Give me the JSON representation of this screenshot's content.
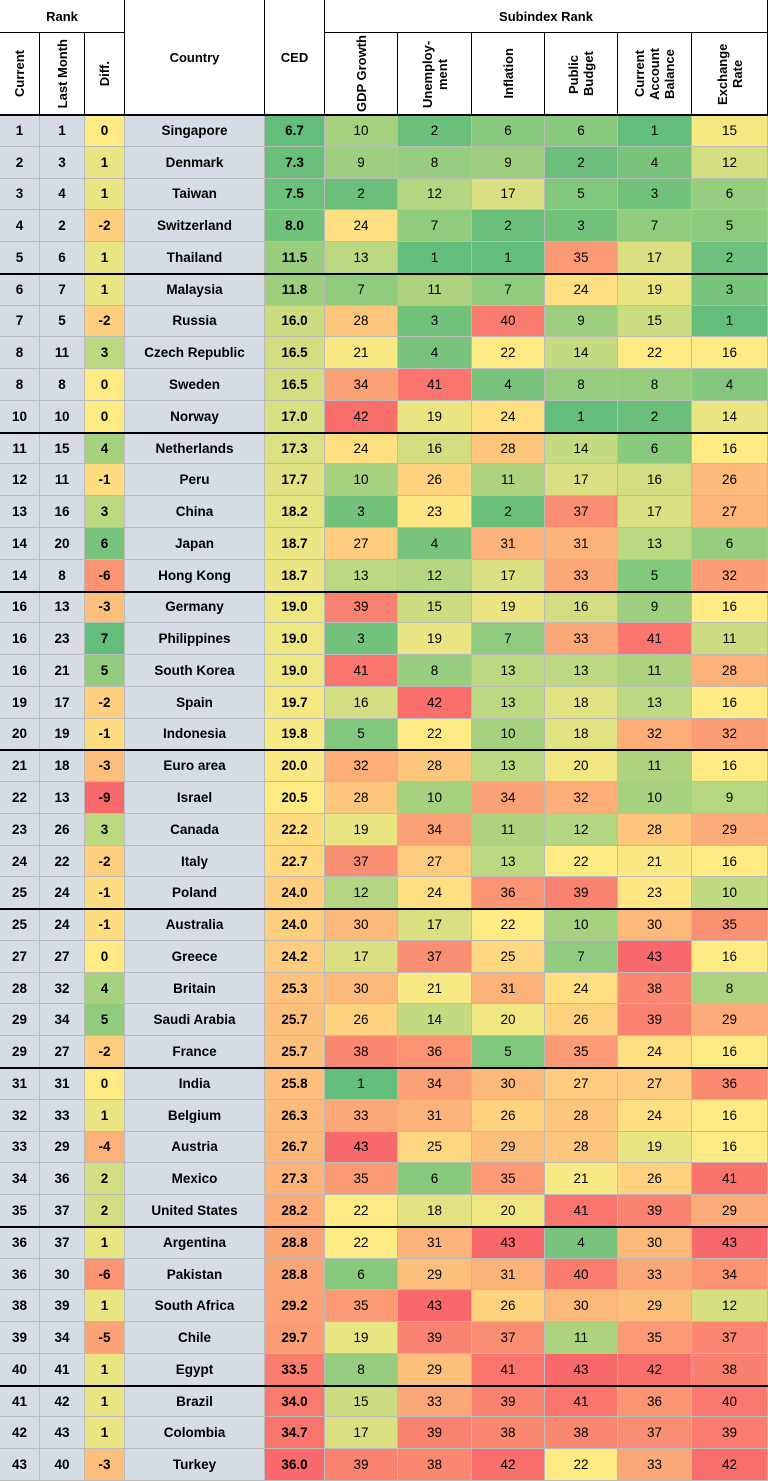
{
  "header": {
    "rank": "Rank",
    "subindex": "Subindex Rank",
    "columns": [
      "Current",
      "Last Month",
      "Diff.",
      "Country",
      "CED",
      "GDP Growth",
      "Unemploy-ment",
      "Inflation",
      "Public Budget",
      "Current Account Balance",
      "Exchange Rate"
    ]
  },
  "table": {
    "rows": [
      [
        1,
        1,
        0,
        "Singapore",
        "6.7",
        10,
        2,
        6,
        6,
        1,
        15
      ],
      [
        2,
        3,
        1,
        "Denmark",
        "7.3",
        9,
        8,
        9,
        2,
        4,
        12
      ],
      [
        3,
        4,
        1,
        "Taiwan",
        "7.5",
        2,
        12,
        17,
        5,
        3,
        6
      ],
      [
        4,
        2,
        -2,
        "Switzerland",
        "8.0",
        24,
        7,
        2,
        3,
        7,
        5
      ],
      [
        5,
        6,
        1,
        "Thailand",
        "11.5",
        13,
        1,
        1,
        35,
        17,
        2
      ],
      [
        6,
        7,
        1,
        "Malaysia",
        "11.8",
        7,
        11,
        7,
        24,
        19,
        3
      ],
      [
        7,
        5,
        -2,
        "Russia",
        "16.0",
        28,
        3,
        40,
        9,
        15,
        1
      ],
      [
        8,
        11,
        3,
        "Czech Republic",
        "16.5",
        21,
        4,
        22,
        14,
        22,
        16
      ],
      [
        8,
        8,
        0,
        "Sweden",
        "16.5",
        34,
        41,
        4,
        8,
        8,
        4
      ],
      [
        10,
        10,
        0,
        "Norway",
        "17.0",
        42,
        19,
        24,
        1,
        2,
        14
      ],
      [
        11,
        15,
        4,
        "Netherlands",
        "17.3",
        24,
        16,
        28,
        14,
        6,
        16
      ],
      [
        12,
        11,
        -1,
        "Peru",
        "17.7",
        10,
        26,
        11,
        17,
        16,
        26
      ],
      [
        13,
        16,
        3,
        "China",
        "18.2",
        3,
        23,
        2,
        37,
        17,
        27
      ],
      [
        14,
        20,
        6,
        "Japan",
        "18.7",
        27,
        4,
        31,
        31,
        13,
        6
      ],
      [
        14,
        8,
        -6,
        "Hong Kong",
        "18.7",
        13,
        12,
        17,
        33,
        5,
        32
      ],
      [
        16,
        13,
        -3,
        "Germany",
        "19.0",
        39,
        15,
        19,
        16,
        9,
        16
      ],
      [
        16,
        23,
        7,
        "Philippines",
        "19.0",
        3,
        19,
        7,
        33,
        41,
        11
      ],
      [
        16,
        21,
        5,
        "South Korea",
        "19.0",
        41,
        8,
        13,
        13,
        11,
        28
      ],
      [
        19,
        17,
        -2,
        "Spain",
        "19.7",
        16,
        42,
        13,
        18,
        13,
        16
      ],
      [
        20,
        19,
        -1,
        "Indonesia",
        "19.8",
        5,
        22,
        10,
        18,
        32,
        32
      ],
      [
        21,
        18,
        -3,
        "Euro area",
        "20.0",
        32,
        28,
        13,
        20,
        11,
        16
      ],
      [
        22,
        13,
        -9,
        "Israel",
        "20.5",
        28,
        10,
        34,
        32,
        10,
        9
      ],
      [
        23,
        26,
        3,
        "Canada",
        "22.2",
        19,
        34,
        11,
        12,
        28,
        29
      ],
      [
        24,
        22,
        -2,
        "Italy",
        "22.7",
        37,
        27,
        13,
        22,
        21,
        16
      ],
      [
        25,
        24,
        -1,
        "Poland",
        "24.0",
        12,
        24,
        36,
        39,
        23,
        10
      ],
      [
        25,
        24,
        -1,
        "Australia",
        "24.0",
        30,
        17,
        22,
        10,
        30,
        35
      ],
      [
        27,
        27,
        0,
        "Greece",
        "24.2",
        17,
        37,
        25,
        7,
        43,
        16
      ],
      [
        28,
        32,
        4,
        "Britain",
        "25.3",
        30,
        21,
        31,
        24,
        38,
        8
      ],
      [
        29,
        34,
        5,
        "Saudi Arabia",
        "25.7",
        26,
        14,
        20,
        26,
        39,
        29
      ],
      [
        29,
        27,
        -2,
        "France",
        "25.7",
        38,
        36,
        5,
        35,
        24,
        16
      ],
      [
        31,
        31,
        0,
        "India",
        "25.8",
        1,
        34,
        30,
        27,
        27,
        36
      ],
      [
        32,
        33,
        1,
        "Belgium",
        "26.3",
        33,
        31,
        26,
        28,
        24,
        16
      ],
      [
        33,
        29,
        -4,
        "Austria",
        "26.7",
        43,
        25,
        29,
        28,
        19,
        16
      ],
      [
        34,
        36,
        2,
        "Mexico",
        "27.3",
        35,
        6,
        35,
        21,
        26,
        41
      ],
      [
        35,
        37,
        2,
        "United States",
        "28.2",
        22,
        18,
        20,
        41,
        39,
        29
      ],
      [
        36,
        37,
        1,
        "Argentina",
        "28.8",
        22,
        31,
        43,
        4,
        30,
        43
      ],
      [
        36,
        30,
        -6,
        "Pakistan",
        "28.8",
        6,
        29,
        31,
        40,
        33,
        34
      ],
      [
        38,
        39,
        1,
        "South Africa",
        "29.2",
        35,
        43,
        26,
        30,
        29,
        12
      ],
      [
        39,
        34,
        -5,
        "Chile",
        "29.7",
        19,
        39,
        37,
        11,
        35,
        37
      ],
      [
        40,
        41,
        1,
        "Egypt",
        "33.5",
        8,
        29,
        41,
        43,
        42,
        38
      ],
      [
        41,
        42,
        1,
        "Brazil",
        "34.0",
        15,
        33,
        39,
        41,
        36,
        40
      ],
      [
        42,
        43,
        1,
        "Colombia",
        "34.7",
        17,
        39,
        38,
        38,
        37,
        39
      ],
      [
        43,
        40,
        -3,
        "Turkey",
        "36.0",
        39,
        38,
        42,
        22,
        33,
        42
      ]
    ]
  },
  "colors": {
    "good": "#63be7b",
    "mid": "#ffeb84",
    "bad": "#f8696b",
    "label_fill": "#d6dce4"
  },
  "heat_columns": [
    2,
    4,
    5,
    6,
    7,
    8,
    9,
    10
  ],
  "higher_is_better": [
    2
  ]
}
